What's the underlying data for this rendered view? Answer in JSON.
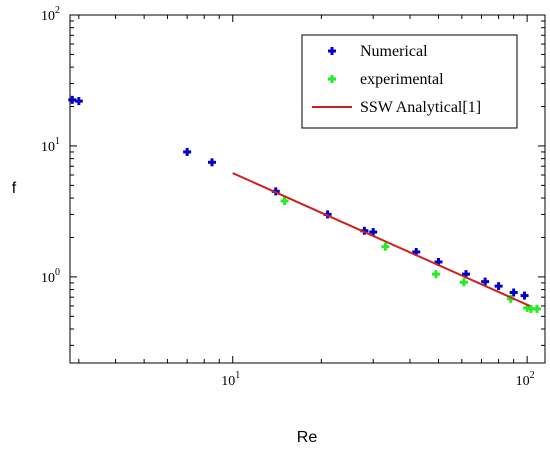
{
  "chart_data": {
    "type": "scatter",
    "title": "",
    "xlabel": "Re",
    "ylabel": "f",
    "x_scale": "log",
    "y_scale": "log",
    "xlim": [
      2.8,
      115
    ],
    "ylim": [
      0.22,
      100
    ],
    "x_ticks": [
      {
        "value": 10,
        "base": "10",
        "exp": "1"
      },
      {
        "value": 100,
        "base": "10",
        "exp": "2"
      }
    ],
    "y_ticks": [
      {
        "value": 1,
        "base": "10",
        "exp": "0"
      },
      {
        "value": 10,
        "base": "10",
        "exp": "1"
      },
      {
        "value": 100,
        "base": "10",
        "exp": "2"
      }
    ],
    "grid": false,
    "legend_position": "top-right",
    "series": [
      {
        "name": "Numerical",
        "kind": "scatter",
        "marker": "plus",
        "color": "#0000cc",
        "points": [
          {
            "x": 2.85,
            "y": 22.5
          },
          {
            "x": 3.0,
            "y": 22.0
          },
          {
            "x": 7.0,
            "y": 9.0
          },
          {
            "x": 8.5,
            "y": 7.5
          },
          {
            "x": 14.0,
            "y": 4.5
          },
          {
            "x": 21.0,
            "y": 3.0
          },
          {
            "x": 28.0,
            "y": 2.25
          },
          {
            "x": 30.0,
            "y": 2.2
          },
          {
            "x": 42.0,
            "y": 1.55
          },
          {
            "x": 50.0,
            "y": 1.3
          },
          {
            "x": 62.0,
            "y": 1.05
          },
          {
            "x": 72.0,
            "y": 0.92
          },
          {
            "x": 80.0,
            "y": 0.85
          },
          {
            "x": 90.0,
            "y": 0.76
          },
          {
            "x": 98.0,
            "y": 0.72
          }
        ]
      },
      {
        "name": "experimental",
        "kind": "scatter",
        "marker": "plus",
        "color": "#22ee22",
        "points": [
          {
            "x": 15.0,
            "y": 3.8
          },
          {
            "x": 33.0,
            "y": 1.7
          },
          {
            "x": 49.0,
            "y": 1.05
          },
          {
            "x": 61.0,
            "y": 0.91
          },
          {
            "x": 88.0,
            "y": 0.68
          },
          {
            "x": 100.0,
            "y": 0.58
          },
          {
            "x": 103.0,
            "y": 0.57
          },
          {
            "x": 108.0,
            "y": 0.57
          }
        ]
      },
      {
        "name": "SSW Analytical[1]",
        "kind": "line",
        "color": "#cc2222",
        "points": [
          {
            "x": 10.0,
            "y": 6.2
          },
          {
            "x": 102.0,
            "y": 0.6
          }
        ]
      }
    ]
  }
}
